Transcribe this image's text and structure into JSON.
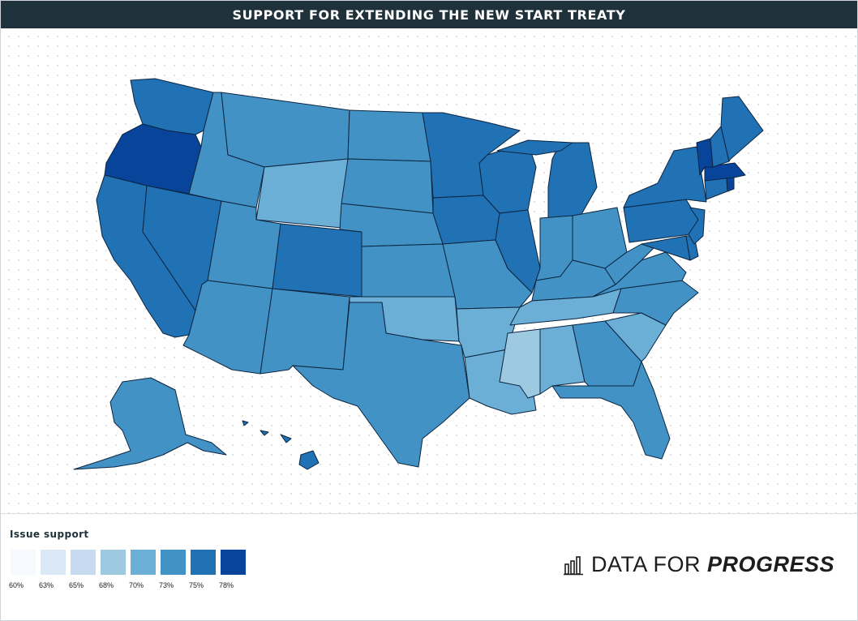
{
  "header": {
    "title": "SUPPORT FOR EXTENDING THE NEW START TREATY"
  },
  "legend": {
    "title": "Issue support",
    "items": [
      {
        "label": "60%",
        "color": "#f6faff"
      },
      {
        "label": "63%",
        "color": "#dbe9f6"
      },
      {
        "label": "65%",
        "color": "#c6dbef"
      },
      {
        "label": "68%",
        "color": "#9ecae1"
      },
      {
        "label": "70%",
        "color": "#6baed6"
      },
      {
        "label": "73%",
        "color": "#4292c6"
      },
      {
        "label": "75%",
        "color": "#2171b5"
      },
      {
        "label": "78%",
        "color": "#08459a"
      }
    ]
  },
  "brand": {
    "prefix": "DATA FOR ",
    "emphasis": "PROGRESS",
    "icon": "bar-chart-icon"
  },
  "map_data": {
    "type": "choropleth",
    "region": "United States",
    "states": {
      "OR": "78%",
      "VT": "78%",
      "MA": "78%",
      "RI": "78%",
      "WA": "75%",
      "CA": "75%",
      "NV": "75%",
      "CO": "75%",
      "MN": "75%",
      "IA": "75%",
      "WI": "75%",
      "IL": "75%",
      "MI": "75%",
      "NY": "75%",
      "PA": "75%",
      "NJ": "75%",
      "MD": "75%",
      "DE": "75%",
      "ME": "75%",
      "NH": "75%",
      "CT": "75%",
      "HI": "75%",
      "ID": "73%",
      "MT": "73%",
      "UT": "73%",
      "AZ": "73%",
      "NM": "73%",
      "ND": "73%",
      "SD": "73%",
      "NE": "73%",
      "KS": "73%",
      "MO": "73%",
      "TX": "73%",
      "IN": "73%",
      "OH": "73%",
      "KY": "73%",
      "WV": "73%",
      "VA": "73%",
      "NC": "73%",
      "GA": "73%",
      "FL": "73%",
      "AK": "73%",
      "WY": "70%",
      "OK": "70%",
      "AR": "70%",
      "LA": "70%",
      "TN": "70%",
      "AL": "70%",
      "SC": "70%",
      "MS": "68%"
    }
  }
}
